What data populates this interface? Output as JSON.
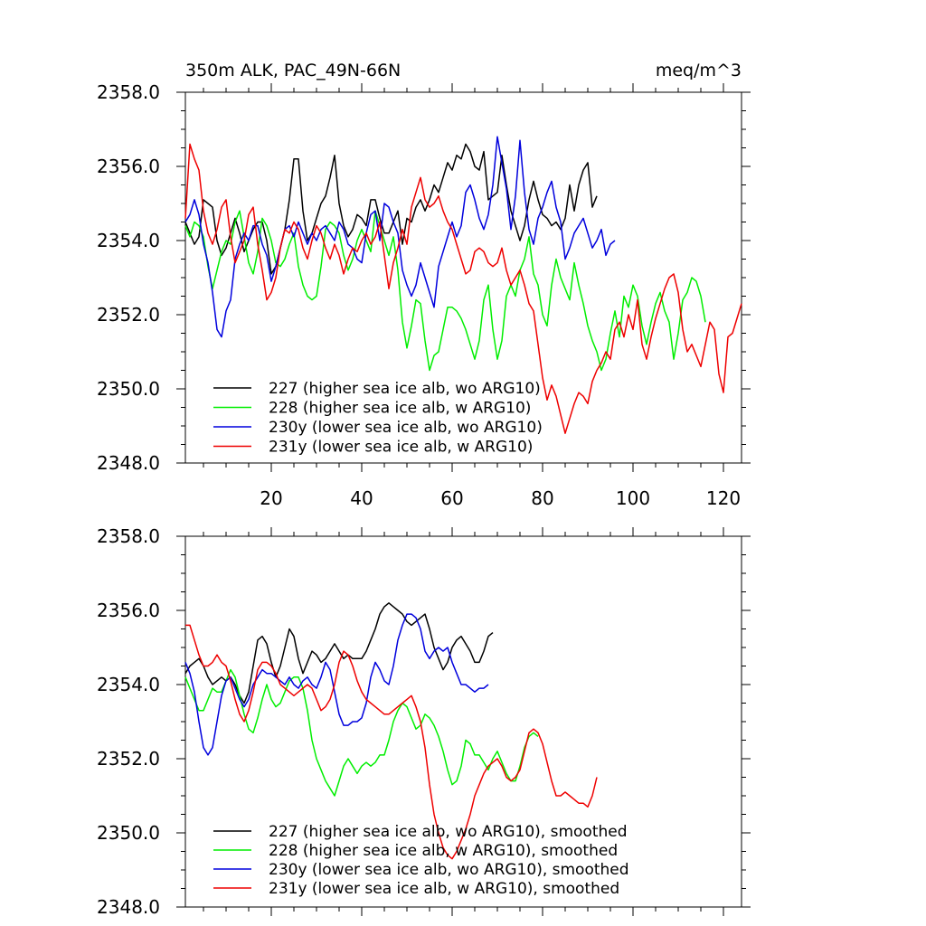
{
  "chart_data": [
    {
      "type": "line",
      "title_left": "350m ALK, PAC_49N-66N",
      "title_right": "meq/m^3",
      "xlim": [
        1,
        124
      ],
      "ylim": [
        2348,
        2358
      ],
      "xticks": [
        20,
        40,
        60,
        80,
        100,
        120
      ],
      "xtick_labels": [
        "20",
        "40",
        "60",
        "80",
        "100",
        "120"
      ],
      "yticks": [
        2348,
        2350,
        2352,
        2354,
        2356,
        2358
      ],
      "ytick_labels": [
        "2348.0",
        "2350.0",
        "2352.0",
        "2354.0",
        "2356.0",
        "2358.0"
      ],
      "legend_position": "lower-left",
      "series": [
        {
          "name": "227 (higher sea ice alb, wo ARG10)",
          "color": "#000000",
          "values": [
            2354.5,
            2354.2,
            2353.9,
            2354.1,
            2355.1,
            2355.0,
            2354.9,
            2354.0,
            2353.6,
            2353.8,
            2354.2,
            2354.6,
            2354.2,
            2353.7,
            2354.0,
            2354.3,
            2354.5,
            2354.5,
            2354.0,
            2353.1,
            2353.3,
            2353.8,
            2354.3,
            2355.1,
            2356.2,
            2356.2,
            2354.8,
            2354.0,
            2354.2,
            2354.6,
            2355.0,
            2355.2,
            2355.7,
            2356.3,
            2355.0,
            2354.4,
            2354.1,
            2354.3,
            2354.7,
            2354.6,
            2354.4,
            2355.1,
            2355.1,
            2354.6,
            2354.2,
            2354.2,
            2354.5,
            2354.8,
            2353.9,
            2354.6,
            2354.5,
            2354.9,
            2355.1,
            2354.8,
            2355.1,
            2355.5,
            2355.3,
            2355.7,
            2356.1,
            2355.9,
            2356.3,
            2356.2,
            2356.6,
            2356.4,
            2356.0,
            2355.9,
            2356.4,
            2355.1,
            2355.2,
            2355.3,
            2356.3,
            2355.5,
            2354.8,
            2354.4,
            2354.0,
            2354.4,
            2355.1,
            2355.6,
            2355.1,
            2354.7,
            2354.6,
            2354.4,
            2354.5,
            2354.3,
            2354.6,
            2355.5,
            2354.8,
            2355.5,
            2355.9,
            2356.1,
            2354.9,
            2355.2
          ]
        },
        {
          "name": "228 (higher sea ice alb, w ARG10)",
          "color": "#00ee00",
          "values": [
            2354.4,
            2354.1,
            2354.5,
            2354.4,
            2354.1,
            2353.3,
            2352.7,
            2353.2,
            2353.7,
            2354.0,
            2353.9,
            2354.5,
            2354.8,
            2354.1,
            2353.4,
            2353.1,
            2353.7,
            2354.6,
            2354.4,
            2354.0,
            2353.4,
            2353.3,
            2353.5,
            2353.9,
            2354.2,
            2353.3,
            2352.8,
            2352.5,
            2352.4,
            2352.5,
            2353.3,
            2354.3,
            2354.5,
            2354.4,
            2354.2,
            2353.6,
            2353.2,
            2353.5,
            2354.0,
            2354.3,
            2354.0,
            2353.7,
            2354.8,
            2354.4,
            2354.0,
            2353.6,
            2354.1,
            2353.2,
            2351.8,
            2351.1,
            2351.7,
            2352.4,
            2352.3,
            2351.3,
            2350.5,
            2350.9,
            2351.0,
            2351.6,
            2352.2,
            2352.2,
            2352.1,
            2351.9,
            2351.6,
            2351.2,
            2350.8,
            2351.3,
            2352.4,
            2352.8,
            2351.6,
            2350.8,
            2351.3,
            2352.5,
            2352.8,
            2352.5,
            2353.2,
            2353.5,
            2354.1,
            2353.1,
            2352.8,
            2352.0,
            2351.7,
            2352.8,
            2353.5,
            2353.0,
            2352.7,
            2352.4,
            2353.4,
            2352.8,
            2352.3,
            2351.7,
            2351.3,
            2351.0,
            2350.5,
            2350.8,
            2351.5,
            2352.1,
            2351.4,
            2352.5,
            2352.2,
            2352.8,
            2352.5,
            2351.7,
            2351.2,
            2351.8,
            2352.3,
            2352.6,
            2352.1,
            2351.8,
            2350.8,
            2351.5,
            2352.4,
            2352.6,
            2353.0,
            2352.9,
            2352.5,
            2351.8
          ]
        },
        {
          "name": "230y (lower sea ice alb, wo ARG10)",
          "color": "#0000dd",
          "values": [
            2354.5,
            2354.7,
            2355.1,
            2354.7,
            2353.9,
            2353.4,
            2352.6,
            2351.6,
            2351.4,
            2352.1,
            2352.4,
            2353.5,
            2353.9,
            2354.2,
            2354.0,
            2354.4,
            2354.4,
            2353.9,
            2353.6,
            2352.9,
            2353.3,
            2353.8,
            2354.3,
            2354.4,
            2354.1,
            2354.5,
            2354.2,
            2353.9,
            2354.2,
            2354.0,
            2354.3,
            2354.4,
            2354.2,
            2354.0,
            2354.5,
            2354.3,
            2353.9,
            2353.8,
            2353.5,
            2353.4,
            2354.2,
            2354.7,
            2354.8,
            2354.0,
            2355.0,
            2354.9,
            2354.5,
            2354.2,
            2353.2,
            2352.8,
            2352.5,
            2352.8,
            2353.4,
            2353.0,
            2352.6,
            2352.2,
            2353.3,
            2353.7,
            2354.1,
            2354.5,
            2354.1,
            2354.4,
            2355.3,
            2355.5,
            2355.1,
            2354.6,
            2354.3,
            2354.7,
            2355.5,
            2356.8,
            2356.1,
            2355.4,
            2354.3,
            2355.2,
            2356.7,
            2355.3,
            2354.3,
            2353.9,
            2354.6,
            2354.9,
            2355.3,
            2355.6,
            2354.9,
            2354.5,
            2353.5,
            2353.8,
            2354.2,
            2354.4,
            2354.6,
            2354.2,
            2353.8,
            2354.0,
            2354.3,
            2353.6,
            2353.9,
            2354.0
          ]
        },
        {
          "name": "231y (lower sea ice alb, w ARG10)",
          "color": "#ee0000",
          "values": [
            2354.6,
            2356.6,
            2356.2,
            2355.9,
            2354.8,
            2354.2,
            2353.9,
            2354.3,
            2354.9,
            2355.1,
            2354.1,
            2353.4,
            2353.7,
            2354.0,
            2354.7,
            2354.9,
            2353.9,
            2353.2,
            2352.4,
            2352.6,
            2353.0,
            2353.8,
            2354.3,
            2354.2,
            2354.5,
            2354.3,
            2353.8,
            2353.5,
            2354.0,
            2354.4,
            2354.2,
            2353.8,
            2353.5,
            2353.9,
            2353.6,
            2353.1,
            2353.5,
            2353.8,
            2353.7,
            2354.0,
            2354.2,
            2353.9,
            2354.1,
            2354.5,
            2353.6,
            2352.7,
            2353.4,
            2353.8,
            2354.3,
            2353.9,
            2354.9,
            2355.3,
            2355.7,
            2355.1,
            2354.9,
            2355.0,
            2355.2,
            2354.8,
            2354.5,
            2354.3,
            2353.9,
            2353.5,
            2353.1,
            2353.2,
            2353.7,
            2353.8,
            2353.7,
            2353.4,
            2353.3,
            2353.4,
            2353.8,
            2353.2,
            2352.8,
            2353.0,
            2353.2,
            2352.8,
            2352.3,
            2352.1,
            2351.2,
            2350.3,
            2349.7,
            2350.1,
            2349.8,
            2349.3,
            2348.8,
            2349.2,
            2349.6,
            2349.9,
            2349.8,
            2349.6,
            2350.2,
            2350.5,
            2350.7,
            2351.0,
            2350.8,
            2351.6,
            2351.8,
            2351.4,
            2352.0,
            2351.6,
            2352.4,
            2351.2,
            2350.8,
            2351.4,
            2351.9,
            2352.3,
            2352.7,
            2353.0,
            2353.1,
            2352.6,
            2351.6,
            2351.0,
            2351.2,
            2350.9,
            2350.6,
            2351.2,
            2351.8,
            2351.6,
            2350.4,
            2349.9,
            2351.4,
            2351.5,
            2351.9,
            2352.3
          ]
        }
      ]
    },
    {
      "type": "line",
      "xlim": [
        1,
        124
      ],
      "ylim": [
        2348,
        2358
      ],
      "xticks": [
        20,
        40,
        60,
        80,
        100,
        120
      ],
      "yticks": [
        2348,
        2350,
        2352,
        2354,
        2356,
        2358
      ],
      "ytick_labels": [
        "2348.0",
        "2350.0",
        "2352.0",
        "2354.0",
        "2356.0",
        "2358.0"
      ],
      "legend_position": "lower-left",
      "series": [
        {
          "name": "227 (higher sea ice alb, wo ARG10), smoothed",
          "color": "#000000",
          "values": [
            2354.3,
            2354.5,
            2354.6,
            2354.7,
            2354.5,
            2354.2,
            2354.0,
            2354.1,
            2354.2,
            2354.1,
            2354.2,
            2354.0,
            2353.7,
            2353.5,
            2353.8,
            2354.5,
            2355.2,
            2355.3,
            2355.1,
            2354.6,
            2354.2,
            2354.5,
            2355.0,
            2355.5,
            2355.3,
            2354.7,
            2354.3,
            2354.6,
            2354.9,
            2354.8,
            2354.6,
            2354.7,
            2354.9,
            2355.1,
            2354.9,
            2354.7,
            2354.8,
            2354.7,
            2354.7,
            2354.7,
            2354.9,
            2355.2,
            2355.5,
            2355.9,
            2356.1,
            2356.2,
            2356.1,
            2356.0,
            2355.9,
            2355.7,
            2355.6,
            2355.7,
            2355.8,
            2355.9,
            2355.5,
            2355.0,
            2354.7,
            2354.4,
            2354.6,
            2355.0,
            2355.2,
            2355.3,
            2355.1,
            2354.9,
            2354.6,
            2354.6,
            2354.9,
            2355.3,
            2355.4
          ]
        },
        {
          "name": "228 (higher sea ice alb, w ARG10), smoothed",
          "color": "#00ee00",
          "values": [
            2354.2,
            2353.9,
            2353.6,
            2353.3,
            2353.3,
            2353.6,
            2353.9,
            2353.8,
            2353.8,
            2354.1,
            2354.4,
            2354.2,
            2353.7,
            2353.2,
            2352.8,
            2352.7,
            2353.1,
            2353.6,
            2354.0,
            2353.6,
            2353.4,
            2353.5,
            2353.8,
            2354.1,
            2354.2,
            2354.2,
            2353.9,
            2353.3,
            2352.5,
            2352.0,
            2351.7,
            2351.4,
            2351.2,
            2351.0,
            2351.4,
            2351.8,
            2352.0,
            2351.8,
            2351.6,
            2351.8,
            2351.9,
            2351.8,
            2351.9,
            2352.1,
            2352.1,
            2352.5,
            2353.0,
            2353.3,
            2353.5,
            2353.4,
            2353.1,
            2352.8,
            2352.9,
            2353.2,
            2353.1,
            2352.9,
            2352.6,
            2352.2,
            2351.7,
            2351.3,
            2351.4,
            2351.8,
            2352.5,
            2352.4,
            2352.1,
            2352.1,
            2351.9,
            2351.7,
            2352.0,
            2352.2,
            2351.9,
            2351.6,
            2351.4,
            2351.4,
            2351.8,
            2352.3,
            2352.6,
            2352.7,
            2352.6
          ]
        },
        {
          "name": "230y (lower sea ice alb, wo ARG10), smoothed",
          "color": "#0000dd",
          "values": [
            2354.6,
            2354.3,
            2353.8,
            2353.0,
            2352.3,
            2352.1,
            2352.3,
            2353.0,
            2353.7,
            2354.1,
            2354.2,
            2353.9,
            2353.6,
            2353.4,
            2353.6,
            2354.0,
            2354.2,
            2354.4,
            2354.3,
            2354.3,
            2354.2,
            2354.1,
            2354.0,
            2354.2,
            2354.0,
            2353.9,
            2354.1,
            2354.2,
            2354.0,
            2353.9,
            2354.2,
            2354.6,
            2354.4,
            2353.8,
            2353.2,
            2352.9,
            2352.9,
            2353.0,
            2353.0,
            2353.1,
            2353.5,
            2354.2,
            2354.6,
            2354.4,
            2354.1,
            2354.0,
            2354.5,
            2355.2,
            2355.6,
            2355.9,
            2355.9,
            2355.8,
            2355.5,
            2354.9,
            2354.7,
            2354.9,
            2355.0,
            2354.9,
            2355.0,
            2354.6,
            2354.3,
            2354.0,
            2354.0,
            2353.9,
            2353.8,
            2353.9,
            2353.9,
            2354.0
          ]
        },
        {
          "name": "231y (lower sea ice alb, w ARG10), smoothed",
          "color": "#ee0000",
          "values": [
            2355.6,
            2355.6,
            2355.2,
            2354.8,
            2354.5,
            2354.5,
            2354.6,
            2354.8,
            2354.6,
            2354.5,
            2354.1,
            2353.6,
            2353.2,
            2353.0,
            2353.3,
            2353.8,
            2354.4,
            2354.6,
            2354.6,
            2354.5,
            2354.3,
            2354.0,
            2353.9,
            2353.8,
            2353.7,
            2353.8,
            2353.9,
            2354.0,
            2353.9,
            2353.6,
            2353.3,
            2353.4,
            2353.6,
            2354.0,
            2354.6,
            2354.9,
            2354.8,
            2354.5,
            2354.1,
            2353.8,
            2353.6,
            2353.5,
            2353.4,
            2353.3,
            2353.2,
            2353.2,
            2353.3,
            2353.4,
            2353.5,
            2353.6,
            2353.7,
            2353.4,
            2353.0,
            2352.3,
            2351.3,
            2350.5,
            2350.0,
            2349.6,
            2349.4,
            2349.3,
            2349.5,
            2349.8,
            2350.1,
            2350.5,
            2351.0,
            2351.3,
            2351.6,
            2351.8,
            2351.9,
            2352.0,
            2351.8,
            2351.5,
            2351.4,
            2351.5,
            2351.7,
            2352.2,
            2352.7,
            2352.8,
            2352.7,
            2352.4,
            2351.9,
            2351.4,
            2351.0,
            2351.0,
            2351.1,
            2351.0,
            2350.9,
            2350.8,
            2350.8,
            2350.7,
            2351.0,
            2351.5
          ]
        }
      ]
    }
  ]
}
